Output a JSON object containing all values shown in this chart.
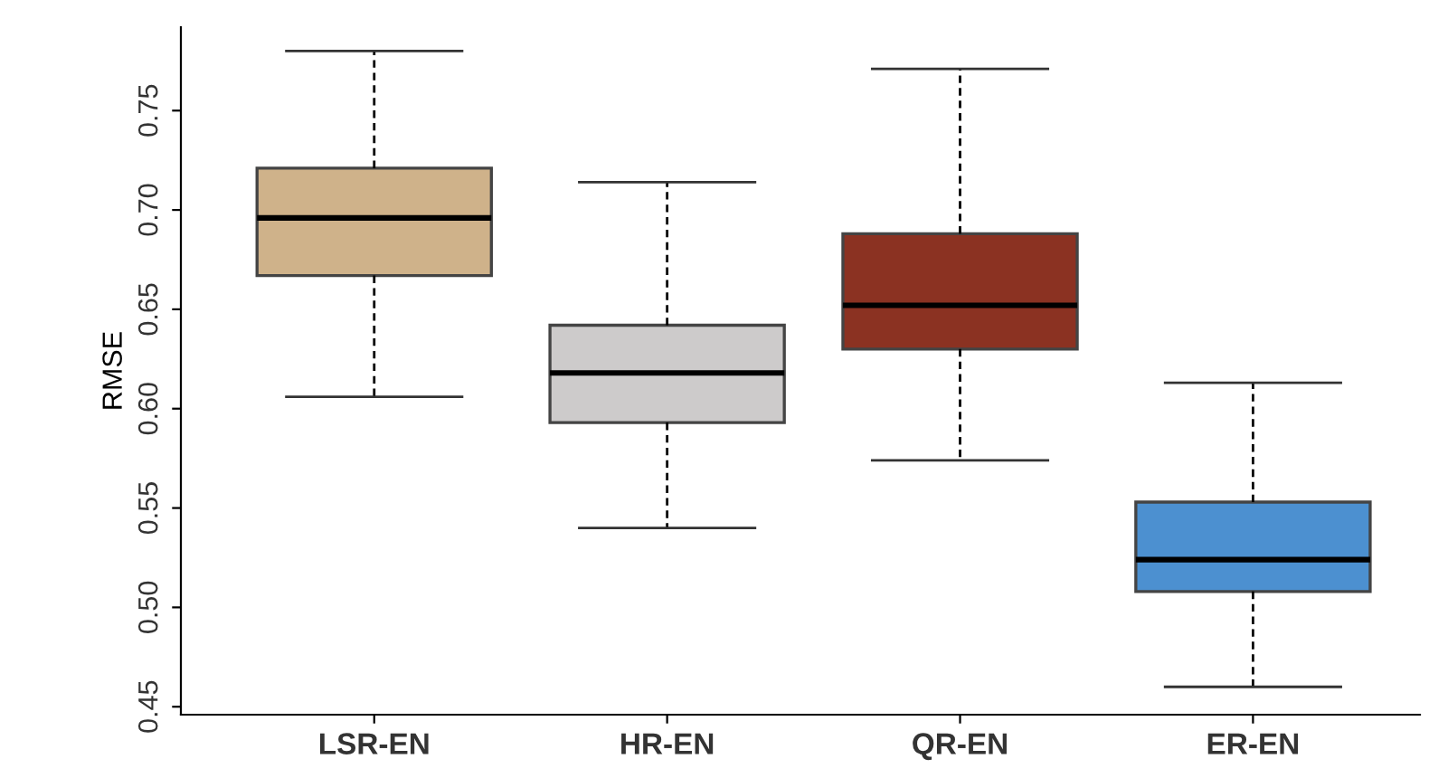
{
  "chart_data": {
    "type": "box",
    "ylabel": "RMSE",
    "categories": [
      "LSR-EN",
      "HR-EN",
      "QR-EN",
      "ER-EN"
    ],
    "colors": [
      "#cfb28a",
      "#cdcbcb",
      "#8b3222",
      "#4c90d0"
    ],
    "boxes": [
      {
        "low": 0.606,
        "q1": 0.667,
        "median": 0.696,
        "q3": 0.721,
        "high": 0.78
      },
      {
        "low": 0.54,
        "q1": 0.593,
        "median": 0.618,
        "q3": 0.642,
        "high": 0.714
      },
      {
        "low": 0.574,
        "q1": 0.63,
        "median": 0.652,
        "q3": 0.688,
        "high": 0.771
      },
      {
        "low": 0.46,
        "q1": 0.508,
        "median": 0.524,
        "q3": 0.553,
        "high": 0.613
      }
    ],
    "ylim": [
      0.446,
      0.792
    ],
    "yticks": [
      0.45,
      {
        "value": 0.5,
        "label": "0.50"
      },
      0.55,
      {
        "value": 0.6,
        "label": "0.60"
      },
      0.65,
      {
        "value": 0.7,
        "label": "0.70"
      },
      0.75
    ],
    "grid": false,
    "legend": false
  }
}
